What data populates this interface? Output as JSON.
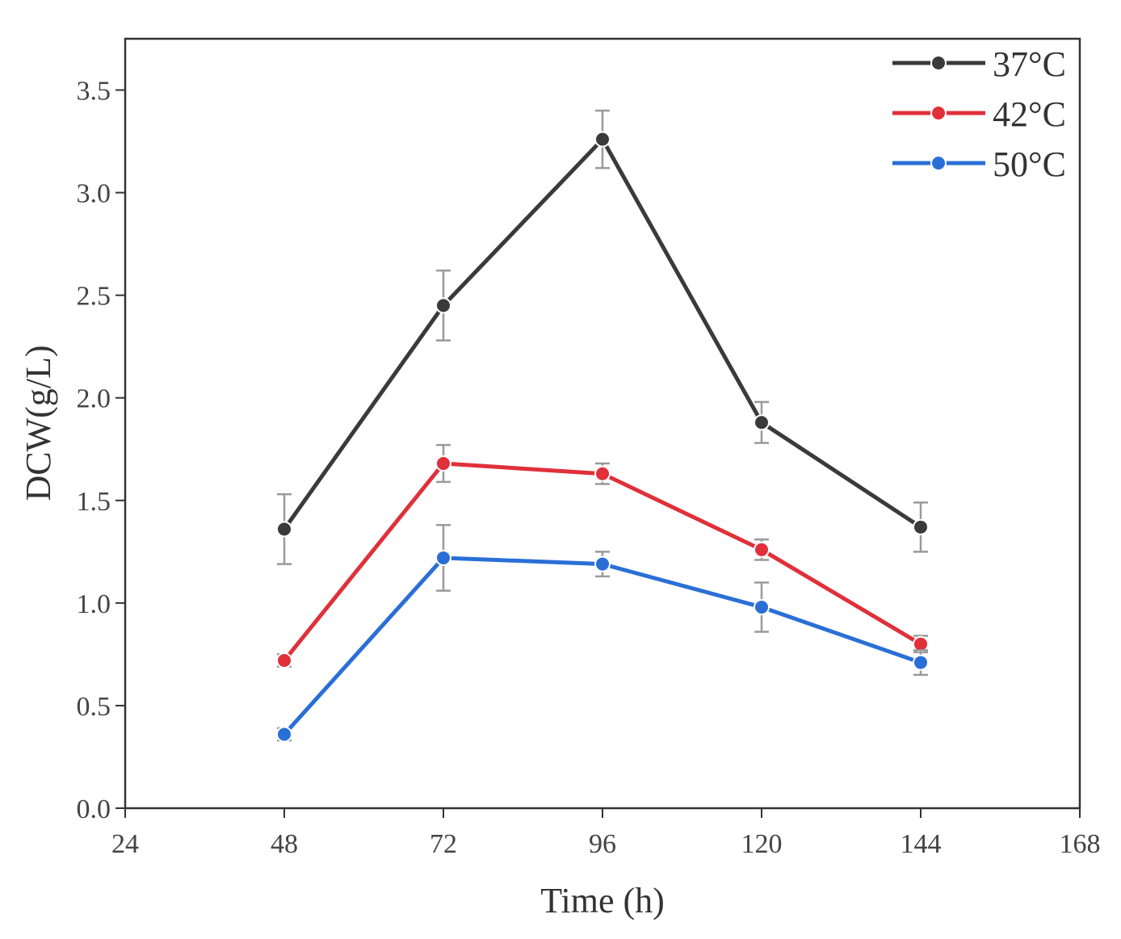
{
  "chart_data": {
    "type": "line",
    "title": "",
    "xlabel": "Time (h)",
    "ylabel": "DCW(g/L)",
    "xlim": [
      24,
      168
    ],
    "ylim": [
      0.0,
      3.75
    ],
    "xticks": [
      24,
      48,
      72,
      96,
      120,
      144,
      168
    ],
    "xtick_labels": [
      "24",
      "48",
      "72",
      "96",
      "120",
      "144",
      "168"
    ],
    "yticks": [
      0.0,
      0.5,
      1.0,
      1.5,
      2.0,
      2.5,
      3.0,
      3.5
    ],
    "ytick_labels": [
      "0.0",
      "0.5",
      "1.0",
      "1.5",
      "2.0",
      "2.5",
      "3.0",
      "3.5"
    ],
    "grid": false,
    "legend_position": "top-right",
    "x": [
      48,
      72,
      96,
      120,
      144
    ],
    "series": [
      {
        "name": "37°C",
        "color": "#3a3a3a",
        "values": [
          1.36,
          2.45,
          3.26,
          1.88,
          1.37
        ],
        "errors": [
          0.17,
          0.17,
          0.14,
          0.1,
          0.12
        ]
      },
      {
        "name": "42°C",
        "color": "#e0303a",
        "values": [
          0.72,
          1.68,
          1.63,
          1.26,
          0.8
        ],
        "errors": [
          0.03,
          0.09,
          0.05,
          0.05,
          0.04
        ]
      },
      {
        "name": "50°C",
        "color": "#2a6fd6",
        "values": [
          0.36,
          1.22,
          1.19,
          0.98,
          0.71
        ],
        "errors": [
          0.03,
          0.16,
          0.06,
          0.12,
          0.06
        ]
      }
    ]
  }
}
